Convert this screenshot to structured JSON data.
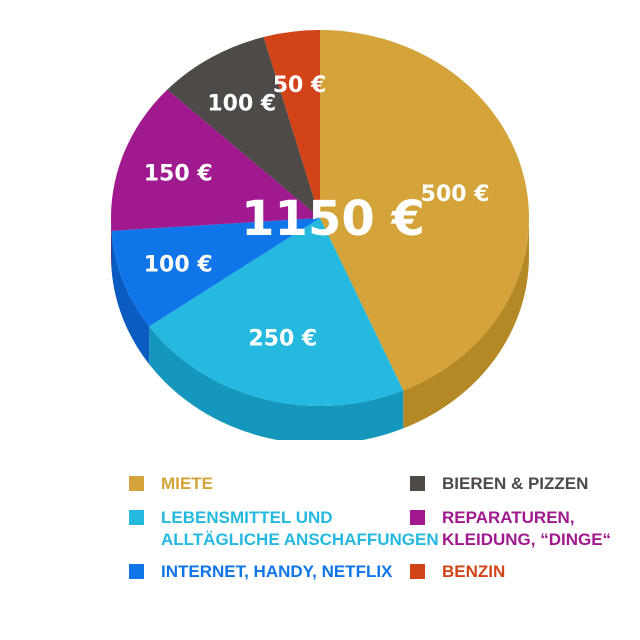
{
  "chart_data": {
    "type": "pie",
    "total_label": "1150 €",
    "slices": [
      {
        "name": "MIETE",
        "value": 500,
        "label": "500 €",
        "color": "#d4a43b",
        "side_color": "#b58826"
      },
      {
        "name": "LEBENSMITTEL UND\nALLTÄGLICHE ANSCHAFFUNGEN",
        "value": 250,
        "label": "250 €",
        "color": "#25b9df",
        "side_color": "#1596bd"
      },
      {
        "name": "INTERNET, HANDY, NETFLIX",
        "value": 100,
        "label": "100 €",
        "color": "#0f75e8",
        "side_color": "#0a5cc0"
      },
      {
        "name": "REPARATUREN,\nKLEIDUNG, “DINGE“",
        "value": 150,
        "label": "150 €",
        "color": "#a0198f",
        "side_color": "#7c1170"
      },
      {
        "name": "BIEREN & PIZZEN",
        "value": 100,
        "label": "100 €",
        "color": "#4e4a47",
        "side_color": "#3a3734"
      },
      {
        "name": "BENZIN",
        "value": 50,
        "label": "50 €",
        "color": "#d24418",
        "side_color": "#a83410"
      }
    ],
    "legend": [
      {
        "text": "MIETE",
        "color": "#d4a43b"
      },
      {
        "text": "LEBENSMITTEL UND\nALLTÄGLICHE ANSCHAFFUNGEN",
        "color": "#25b9df"
      },
      {
        "text": "INTERNET, HANDY, NETFLIX",
        "color": "#0f75e8"
      },
      {
        "text": "BIEREN & PIZZEN",
        "color": "#4e4a47"
      },
      {
        "text": "REPARATUREN,\nKLEIDUNG, “DINGE“",
        "color": "#a0198f"
      },
      {
        "text": "BENZIN",
        "color": "#d24418"
      }
    ]
  }
}
